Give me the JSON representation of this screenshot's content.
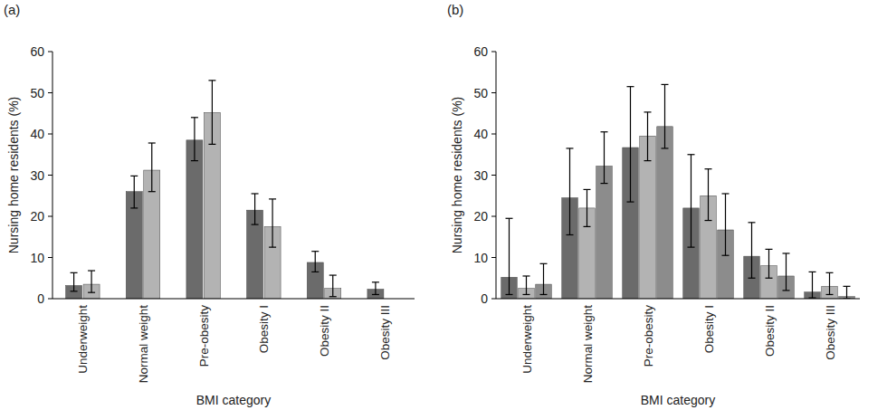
{
  "chart_data": [
    {
      "type": "bar",
      "title": "(a)",
      "y_label": "Nursing home residents (%)",
      "x_label": "BMI category",
      "categories": [
        "Underweight",
        "Normal weight",
        "Pre-obesity",
        "Obesity I",
        "Obesity II",
        "Obesity III"
      ],
      "series": [
        {
          "color": "#6b6b6b",
          "values": [
            3.2,
            26,
            38.5,
            21.5,
            8.8,
            2.3
          ],
          "lower": [
            1.8,
            22,
            33.5,
            18,
            6.5,
            1
          ],
          "upper": [
            6.3,
            29.8,
            44,
            25.5,
            11.5,
            4
          ]
        },
        {
          "color": "#b3b3b3",
          "values": [
            3.5,
            31.2,
            45.2,
            17.5,
            2.5,
            null
          ],
          "lower": [
            1.5,
            26,
            37.5,
            12.5,
            0.5,
            null
          ],
          "upper": [
            6.8,
            37.8,
            53,
            24.2,
            5.7,
            null
          ]
        }
      ],
      "ylim": [
        0,
        60
      ],
      "yticks": [
        0,
        10,
        20,
        30,
        40,
        50,
        60
      ],
      "grid": false
    },
    {
      "type": "bar",
      "title": "(b)",
      "y_label": "Nursing home residents (%)",
      "x_label": "BMI category",
      "categories": [
        "Underweight",
        "Normal weight",
        "Pre-obesity",
        "Obesity I",
        "Obesity II",
        "Obesity III"
      ],
      "series": [
        {
          "color": "#6b6b6b",
          "values": [
            5.2,
            24.5,
            36.7,
            22,
            10.3,
            1.6
          ],
          "lower": [
            1,
            15.5,
            23.5,
            12.5,
            5,
            0.2
          ],
          "upper": [
            19.5,
            36.5,
            51.5,
            35,
            18.5,
            6.5
          ]
        },
        {
          "color": "#b3b3b3",
          "values": [
            2.5,
            22,
            39.5,
            25,
            8,
            3
          ],
          "lower": [
            1,
            17.5,
            33.5,
            19,
            5,
            1
          ],
          "upper": [
            5.5,
            26.5,
            45.3,
            31.5,
            12,
            6.3
          ]
        },
        {
          "color": "#8c8c8c",
          "values": [
            3.5,
            32.2,
            41.8,
            16.7,
            5.5,
            0.5
          ],
          "lower": [
            1,
            28,
            36.5,
            10.5,
            2,
            0
          ],
          "upper": [
            8.5,
            40.5,
            52,
            25.5,
            11,
            3
          ]
        }
      ],
      "ylim": [
        0,
        60
      ],
      "yticks": [
        0,
        10,
        20,
        30,
        40,
        50,
        60
      ],
      "grid": false
    }
  ]
}
